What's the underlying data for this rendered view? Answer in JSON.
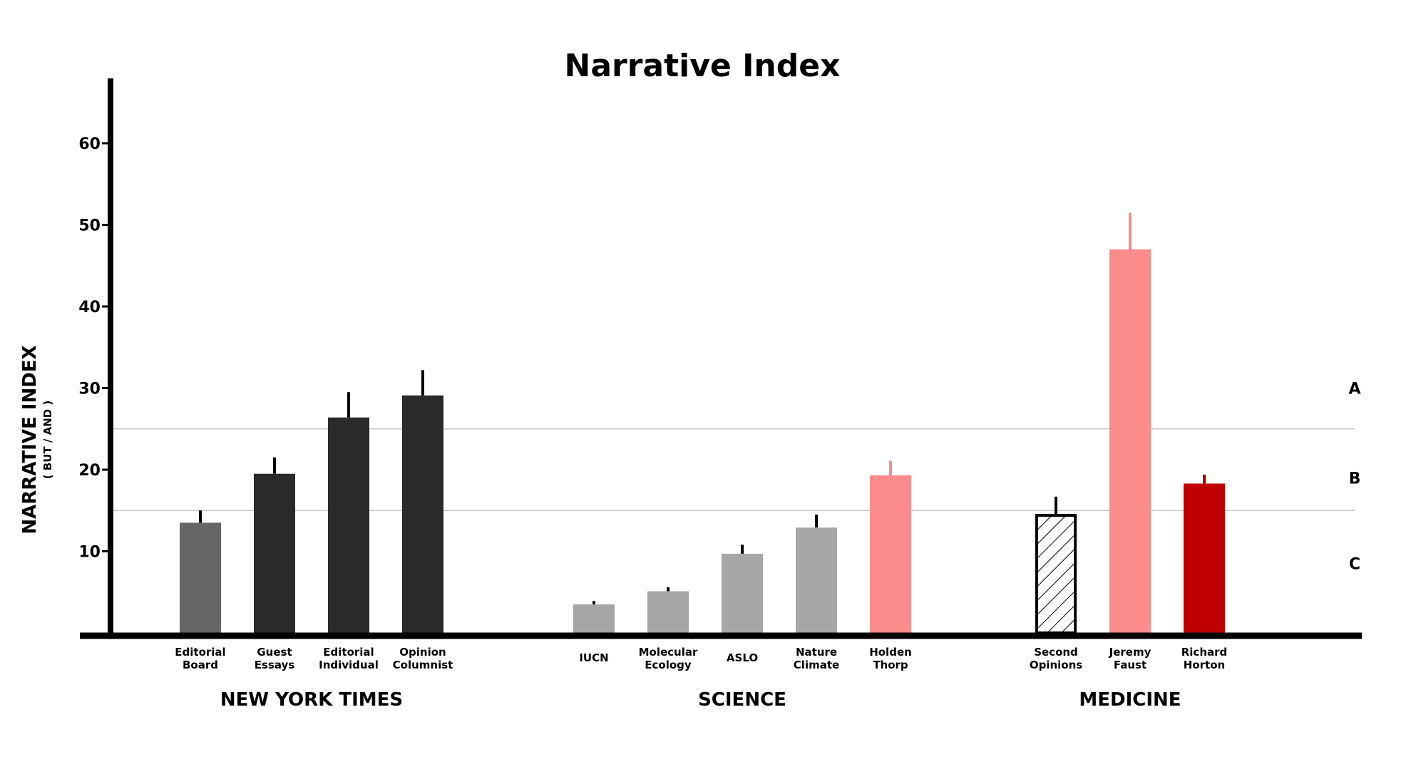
{
  "chart_data": {
    "type": "bar",
    "title": "Narrative Index",
    "ylabel": "NARRATIVE INDEX",
    "ylabel_sub": "( BUT / AND )",
    "ylim": [
      0,
      68
    ],
    "yticks": [
      10,
      20,
      30,
      40,
      50,
      60
    ],
    "grid": false,
    "reference_lines": [
      15,
      25
    ],
    "bands": [
      {
        "label": "A",
        "value": 30
      },
      {
        "label": "B",
        "value": 19
      },
      {
        "label": "C",
        "value": 8.5
      }
    ],
    "groups": [
      {
        "name": "NEW YORK TIMES",
        "bars": [
          {
            "label": [
              "Editorial",
              "Board"
            ],
            "value": 13.5,
            "error": 1.5,
            "color": "#666666",
            "hatch": false
          },
          {
            "label": [
              "Guest",
              "Essays"
            ],
            "value": 19.5,
            "error": 2.0,
            "color": "#2a2a2a",
            "hatch": false
          },
          {
            "label": [
              "Editorial",
              "Individual"
            ],
            "value": 26.4,
            "error": 3.1,
            "color": "#2a2a2a",
            "hatch": false
          },
          {
            "label": [
              "Opinion",
              "Columnist"
            ],
            "value": 29.1,
            "error": 3.1,
            "color": "#2a2a2a",
            "hatch": false
          }
        ]
      },
      {
        "name": "SCIENCE",
        "bars": [
          {
            "label": [
              "IUCN"
            ],
            "value": 3.5,
            "error": 0.4,
            "color": "#a6a6a6",
            "hatch": false
          },
          {
            "label": [
              "Molecular",
              "Ecology"
            ],
            "value": 5.1,
            "error": 0.5,
            "color": "#a6a6a6",
            "hatch": false
          },
          {
            "label": [
              "ASLO"
            ],
            "value": 9.7,
            "error": 1.1,
            "color": "#a6a6a6",
            "hatch": false
          },
          {
            "label": [
              "Nature",
              "Climate"
            ],
            "value": 12.9,
            "error": 1.6,
            "color": "#a6a6a6",
            "hatch": false
          },
          {
            "label": [
              "Holden",
              "Thorp"
            ],
            "value": 19.3,
            "error": 1.8,
            "color": "#fc8c8c",
            "hatch": false
          }
        ]
      },
      {
        "name": "MEDICINE",
        "bars": [
          {
            "label": [
              "Second",
              "Opinions"
            ],
            "value": 14.4,
            "error": 2.3,
            "color": "#ffffff",
            "hatch": true
          },
          {
            "label": [
              "Jeremy",
              "Faust"
            ],
            "value": 47.0,
            "error": 4.5,
            "color": "#fc8c8c",
            "hatch": false
          },
          {
            "label": [
              "Richard",
              "Horton"
            ],
            "value": 18.3,
            "error": 1.1,
            "color": "#c00000",
            "hatch": false
          }
        ]
      }
    ]
  }
}
